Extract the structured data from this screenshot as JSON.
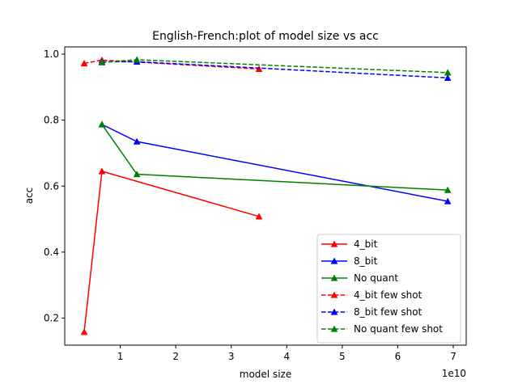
{
  "chart_data": {
    "type": "line",
    "title": "English-French:plot of model size vs acc",
    "xlabel": "model size",
    "ylabel": "acc",
    "x_offset_label": "1e10",
    "xlim": [
      0.0,
      0.7233
    ],
    "ylim": [
      0.118,
      1.022
    ],
    "x_scale_factor": 10000000000,
    "xticks": [
      {
        "v": 1,
        "label": "1"
      },
      {
        "v": 2,
        "label": "2"
      },
      {
        "v": 3,
        "label": "3"
      },
      {
        "v": 4,
        "label": "4"
      },
      {
        "v": 5,
        "label": "5"
      },
      {
        "v": 6,
        "label": "6"
      },
      {
        "v": 7,
        "label": "7"
      }
    ],
    "yticks": [
      {
        "v": 0.2,
        "label": "0.2"
      },
      {
        "v": 0.4,
        "label": "0.4"
      },
      {
        "v": 0.6,
        "label": "0.6"
      },
      {
        "v": 0.8,
        "label": "0.8"
      },
      {
        "v": 1.0,
        "label": "1.0"
      }
    ],
    "grid": false,
    "legend_position": "lower right",
    "series": [
      {
        "name": "4_bit",
        "color": "#ff0000",
        "linestyle": "solid",
        "marker": "triangle-up",
        "x": [
          3500000000.0,
          6700000000.0,
          35000000000.0
        ],
        "y": [
          0.158,
          0.645,
          0.508
        ]
      },
      {
        "name": "8_bit",
        "color": "#0000ff",
        "linestyle": "solid",
        "marker": "triangle-up",
        "x": [
          6700000000.0,
          13000000000.0,
          69000000000.0
        ],
        "y": [
          0.787,
          0.735,
          0.554
        ]
      },
      {
        "name": "No quant",
        "color": "#008000",
        "linestyle": "solid",
        "marker": "triangle-up",
        "x": [
          6700000000.0,
          13000000000.0,
          69000000000.0
        ],
        "y": [
          0.787,
          0.636,
          0.588
        ]
      },
      {
        "name": "4_bit few shot",
        "color": "#ff0000",
        "linestyle": "dashed",
        "marker": "triangle-up",
        "x": [
          3500000000.0,
          6700000000.0,
          35000000000.0
        ],
        "y": [
          0.972,
          0.982,
          0.955
        ]
      },
      {
        "name": "8_bit few shot",
        "color": "#0000ff",
        "linestyle": "dashed",
        "marker": "triangle-up",
        "x": [
          6700000000.0,
          13000000000.0,
          69000000000.0
        ],
        "y": [
          0.977,
          0.977,
          0.928
        ]
      },
      {
        "name": "No quant few shot",
        "color": "#008000",
        "linestyle": "dashed",
        "marker": "triangle-up",
        "x": [
          6700000000.0,
          13000000000.0,
          69000000000.0
        ],
        "y": [
          0.975,
          0.983,
          0.944
        ]
      }
    ]
  }
}
